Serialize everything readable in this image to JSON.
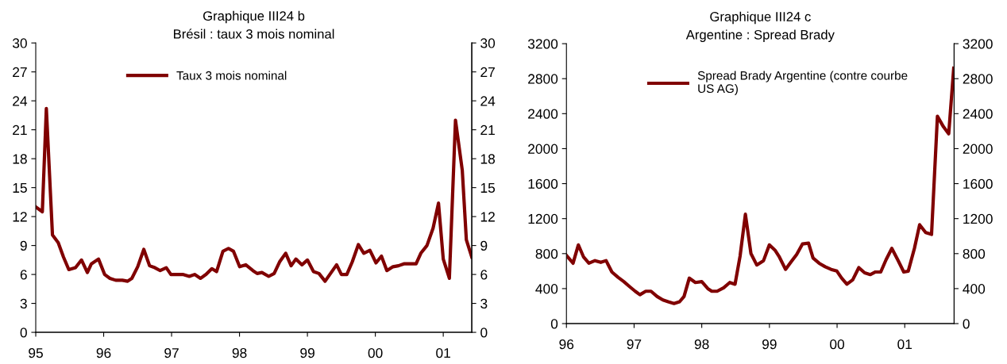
{
  "chart_data": [
    {
      "type": "line",
      "title": "Graphique III24 b",
      "subtitle": "Brésil : taux 3 mois nominal",
      "legend": "top left",
      "grid": false,
      "marker": "none",
      "line_style": "solid",
      "xlim": [
        1995,
        2001.42
      ],
      "xticks": [
        {
          "value": 1995,
          "label": "95"
        },
        {
          "value": 1996,
          "label": "96"
        },
        {
          "value": 1997,
          "label": "97"
        },
        {
          "value": 1998,
          "label": "98"
        },
        {
          "value": 1999,
          "label": "99"
        },
        {
          "value": 2000,
          "label": "00"
        },
        {
          "value": 2001,
          "label": "01"
        }
      ],
      "ylim": [
        0,
        30
      ],
      "yticks": [
        0,
        3,
        6,
        9,
        12,
        15,
        18,
        21,
        24,
        27,
        30
      ],
      "y2lim": [
        0,
        30
      ],
      "y2ticks": [
        0,
        3,
        6,
        9,
        12,
        15,
        18,
        21,
        24,
        27,
        30
      ],
      "series": [
        {
          "name": "Taux 3 mois nominal",
          "color": "#800000",
          "x": [
            1995.0,
            1995.097,
            1995.156,
            1995.246,
            1995.331,
            1995.409,
            1995.487,
            1995.585,
            1995.674,
            1995.76,
            1995.819,
            1995.924,
            1996.014,
            1996.092,
            1996.177,
            1996.275,
            1996.353,
            1996.415,
            1996.501,
            1996.591,
            1996.676,
            1996.754,
            1996.832,
            1996.922,
            1996.99,
            1997.08,
            1997.164,
            1997.261,
            1997.339,
            1997.425,
            1997.507,
            1997.593,
            1997.663,
            1997.756,
            1997.838,
            1997.912,
            1998.002,
            1998.092,
            1998.197,
            1998.26,
            1998.33,
            1998.43,
            1998.51,
            1998.59,
            1998.68,
            1998.76,
            1998.83,
            1998.92,
            1999.0,
            1999.09,
            1999.17,
            1999.26,
            1999.35,
            1999.43,
            1999.5,
            1999.58,
            1999.66,
            1999.75,
            1999.83,
            1999.92,
            2000.01,
            2000.09,
            2000.17,
            2000.26,
            2000.34,
            2000.42,
            2000.51,
            2000.6,
            2000.67,
            2000.76,
            2000.85,
            2000.93,
            2001.0,
            2001.09,
            2001.18,
            2001.28,
            2001.34,
            2001.42
          ],
          "values": [
            13.0,
            12.5,
            23.2,
            10.1,
            9.3,
            7.8,
            6.5,
            6.7,
            7.5,
            6.2,
            7.1,
            7.6,
            6.0,
            5.6,
            5.4,
            5.4,
            5.3,
            5.6,
            6.8,
            8.6,
            6.9,
            6.7,
            6.4,
            6.7,
            6.0,
            6.0,
            6.0,
            5.8,
            6.0,
            5.6,
            6.0,
            6.6,
            6.3,
            8.4,
            8.7,
            8.4,
            6.8,
            7.0,
            6.4,
            6.1,
            6.2,
            5.8,
            6.1,
            7.3,
            8.2,
            6.9,
            7.6,
            7.0,
            7.5,
            6.3,
            6.1,
            5.3,
            6.2,
            7.0,
            6.0,
            6.0,
            7.3,
            9.1,
            8.2,
            8.5,
            7.2,
            7.9,
            6.4,
            6.8,
            6.9,
            7.1,
            7.1,
            7.1,
            8.2,
            9.0,
            10.8,
            13.4,
            7.6,
            5.6,
            22.0,
            16.8,
            9.6,
            7.8
          ]
        }
      ]
    },
    {
      "type": "line",
      "title": "Graphique III24 c",
      "subtitle": "Argentine : Spread Brady",
      "legend": "top left",
      "grid": false,
      "marker": "none",
      "line_style": "solid",
      "xlim": [
        1996,
        2001.73
      ],
      "xticks": [
        {
          "value": 1996,
          "label": "96"
        },
        {
          "value": 1997,
          "label": "97"
        },
        {
          "value": 1998,
          "label": "98"
        },
        {
          "value": 1999,
          "label": "99"
        },
        {
          "value": 2000,
          "label": "00"
        },
        {
          "value": 2001,
          "label": "01"
        }
      ],
      "ylim": [
        0,
        3200
      ],
      "yticks": [
        0,
        400,
        800,
        1200,
        1600,
        2000,
        2400,
        2800,
        3200
      ],
      "y2lim": [
        0,
        3200
      ],
      "y2ticks": [
        0,
        400,
        800,
        1200,
        1600,
        2000,
        2400,
        2800,
        3200
      ],
      "series": [
        {
          "name": "Spread Brady Argentine (contre courbe\nUS AG)",
          "color": "#800000",
          "x": [
            1996.0,
            1996.098,
            1996.176,
            1996.254,
            1996.332,
            1996.422,
            1996.508,
            1996.586,
            1996.672,
            1996.762,
            1996.848,
            1996.938,
            1997.016,
            1997.086,
            1997.172,
            1997.25,
            1997.34,
            1997.426,
            1997.504,
            1997.59,
            1997.672,
            1997.738,
            1997.816,
            1997.906,
            1998.0,
            1998.09,
            1998.148,
            1998.227,
            1998.324,
            1998.414,
            1998.492,
            1998.566,
            1998.645,
            1998.727,
            1998.813,
            1998.913,
            1998.999,
            1999.082,
            1999.148,
            1999.238,
            1999.324,
            1999.402,
            1999.488,
            1999.578,
            1999.645,
            1999.735,
            1999.824,
            1999.911,
            1999.997,
            2000.067,
            2000.145,
            2000.231,
            2000.321,
            2000.407,
            2000.489,
            2000.567,
            2000.645,
            2000.724,
            2000.809,
            2000.896,
            2000.986,
            2001.052,
            2001.143,
            2001.22,
            2001.31,
            2001.396,
            2001.483,
            2001.572,
            2001.65,
            2001.724
          ],
          "values": [
            780,
            690,
            900,
            760,
            690,
            720,
            700,
            720,
            590,
            530,
            480,
            420,
            370,
            330,
            370,
            370,
            310,
            270,
            250,
            230,
            250,
            310,
            520,
            470,
            480,
            400,
            370,
            370,
            410,
            470,
            450,
            770,
            1250,
            800,
            670,
            720,
            900,
            840,
            760,
            620,
            710,
            790,
            910,
            920,
            750,
            690,
            650,
            620,
            600,
            520,
            450,
            500,
            640,
            580,
            560,
            590,
            590,
            730,
            860,
            730,
            590,
            600,
            860,
            1130,
            1040,
            1020,
            2370,
            2250,
            2170,
            2920
          ]
        }
      ]
    }
  ]
}
